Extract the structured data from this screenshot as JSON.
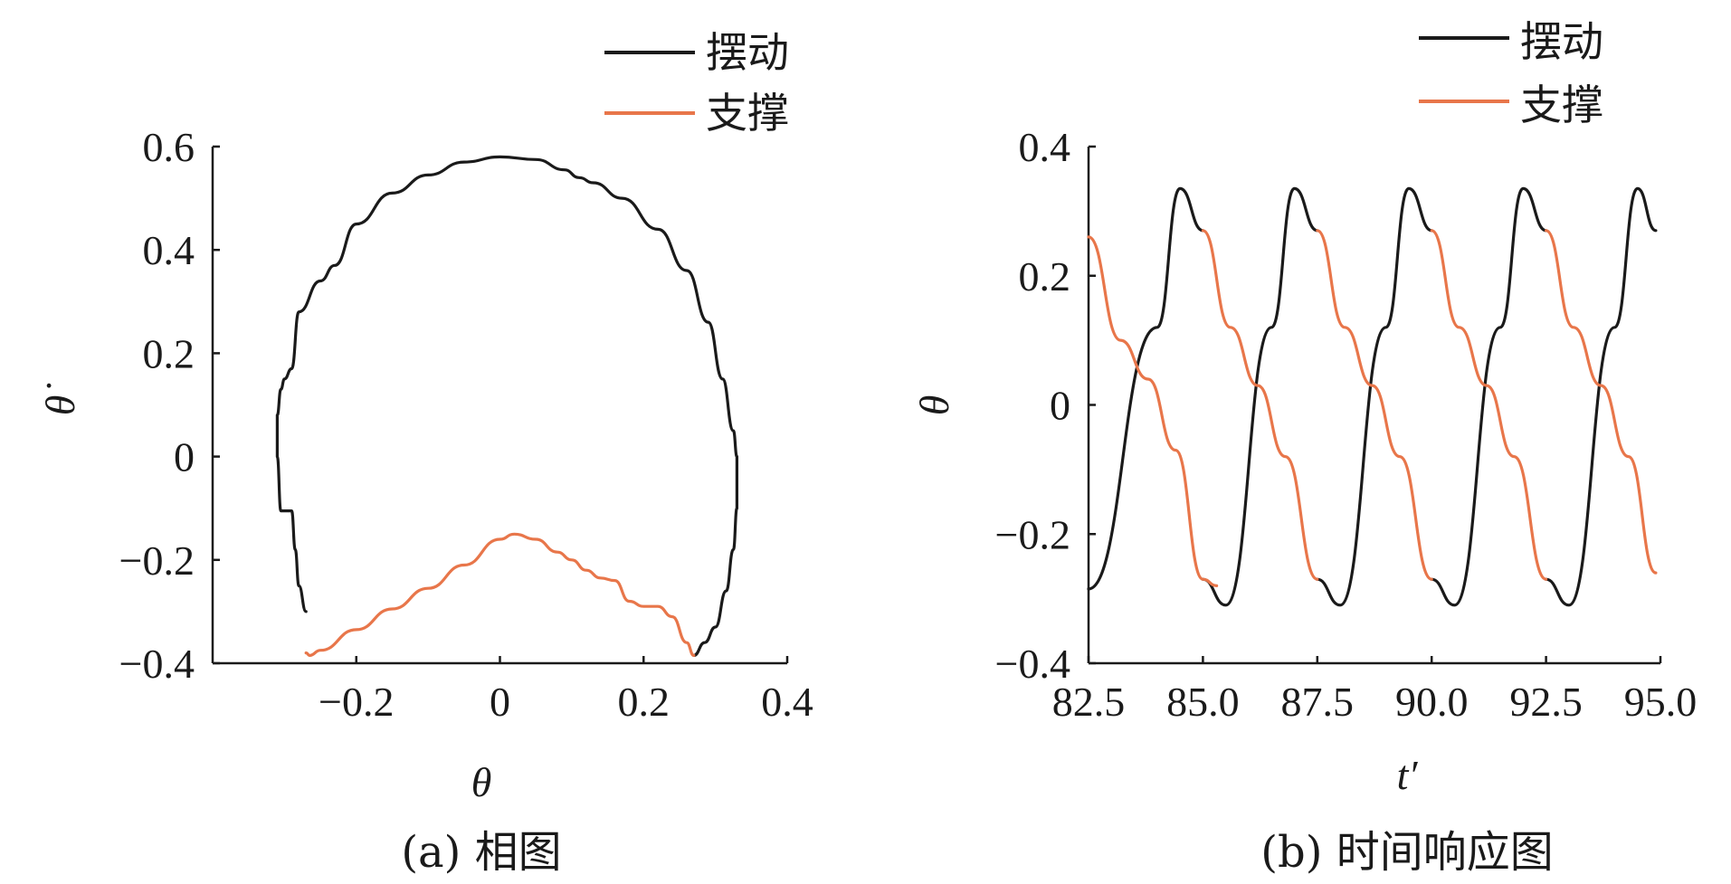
{
  "colors": {
    "swing": "#1a1a1a",
    "stance": "#e8764a",
    "axis": "#1a1a1a"
  },
  "chart_data": [
    {
      "type": "line",
      "caption": "(a) 相图",
      "xlabel": "θ",
      "ylabel": "θ̇",
      "xlim": [
        -0.4,
        0.4
      ],
      "ylim": [
        -0.4,
        0.6
      ],
      "xticks": [
        -0.2,
        0,
        0.2,
        0.4
      ],
      "xtick_labels": [
        "−0.2",
        "0",
        "0.2",
        "0.4"
      ],
      "yticks": [
        -0.4,
        -0.2,
        0,
        0.2,
        0.4,
        0.6
      ],
      "ytick_labels": [
        "−0.4",
        "−0.2",
        "0",
        "0.2",
        "0.4",
        "0.6"
      ],
      "legend_position": "top-right",
      "series": [
        {
          "name": "摆动",
          "color": "#1a1a1a",
          "x": [
            -0.27,
            -0.28,
            -0.285,
            -0.29,
            -0.305,
            -0.31,
            -0.31,
            -0.305,
            -0.3,
            -0.29,
            -0.28,
            -0.25,
            -0.23,
            -0.2,
            -0.15,
            -0.1,
            -0.05,
            0.0,
            0.05,
            0.09,
            0.11,
            0.13,
            0.17,
            0.22,
            0.26,
            0.29,
            0.31,
            0.325,
            0.33,
            0.33,
            0.325,
            0.315,
            0.3,
            0.285,
            0.27
          ],
          "y": [
            -0.3,
            -0.25,
            -0.18,
            -0.105,
            -0.105,
            0.0,
            0.08,
            0.13,
            0.15,
            0.17,
            0.28,
            0.34,
            0.37,
            0.45,
            0.51,
            0.545,
            0.57,
            0.58,
            0.575,
            0.555,
            0.54,
            0.53,
            0.5,
            0.44,
            0.36,
            0.26,
            0.15,
            0.05,
            0.0,
            -0.1,
            -0.18,
            -0.26,
            -0.33,
            -0.36,
            -0.385
          ]
        },
        {
          "name": "支撑",
          "color": "#e8764a",
          "x": [
            -0.27,
            -0.265,
            -0.25,
            -0.2,
            -0.15,
            -0.1,
            -0.05,
            0.0,
            0.02,
            0.05,
            0.08,
            0.1,
            0.12,
            0.14,
            0.16,
            0.18,
            0.2,
            0.22,
            0.24,
            0.26,
            0.27
          ],
          "y": [
            -0.38,
            -0.385,
            -0.375,
            -0.335,
            -0.295,
            -0.255,
            -0.21,
            -0.16,
            -0.15,
            -0.16,
            -0.185,
            -0.2,
            -0.22,
            -0.235,
            -0.24,
            -0.28,
            -0.29,
            -0.29,
            -0.31,
            -0.36,
            -0.385
          ]
        }
      ]
    },
    {
      "type": "line",
      "caption": "(b) 时间响应图",
      "xlabel": "t′",
      "ylabel": "θ",
      "xlim": [
        82.5,
        95.0
      ],
      "ylim": [
        -0.4,
        0.4
      ],
      "xticks": [
        82.5,
        85.0,
        87.5,
        90.0,
        92.5,
        95.0
      ],
      "xtick_labels": [
        "82.5",
        "85.0",
        "87.5",
        "90.0",
        "92.5",
        "95.0"
      ],
      "yticks": [
        -0.4,
        -0.2,
        0,
        0.2,
        0.4
      ],
      "ytick_labels": [
        "−0.4",
        "−0.2",
        "0",
        "0.2",
        "0.4"
      ],
      "legend_position": "top-right",
      "series": [
        {
          "name": "摆动",
          "color": "#1a1a1a",
          "segments": [
            {
              "x": [
                82.5,
                84.0,
                84.5,
                85.0
              ],
              "y": [
                -0.285,
                0.12,
                0.335,
                0.27
              ]
            },
            {
              "x": [
                85.0,
                85.5,
                86.5,
                87.0,
                87.5
              ],
              "y": [
                -0.27,
                -0.31,
                0.12,
                0.335,
                0.27
              ]
            },
            {
              "x": [
                87.5,
                88.0,
                89.0,
                89.5,
                90.0
              ],
              "y": [
                -0.27,
                -0.31,
                0.12,
                0.335,
                0.27
              ]
            },
            {
              "x": [
                90.0,
                90.5,
                91.5,
                92.0,
                92.5
              ],
              "y": [
                -0.27,
                -0.31,
                0.12,
                0.335,
                0.27
              ]
            },
            {
              "x": [
                92.5,
                93.0,
                94.0,
                94.5,
                94.9
              ],
              "y": [
                -0.27,
                -0.31,
                0.12,
                0.335,
                0.27
              ]
            }
          ]
        },
        {
          "name": "支撑",
          "color": "#e8764a",
          "segments": [
            {
              "x": [
                82.5,
                83.2,
                83.8,
                84.4,
                85.0,
                85.3
              ],
              "y": [
                0.26,
                0.1,
                0.04,
                -0.07,
                -0.27,
                -0.28
              ]
            },
            {
              "x": [
                87.5,
                88.1,
                88.7,
                89.3,
                90.0
              ],
              "y": [
                0.27,
                0.12,
                0.03,
                -0.08,
                -0.27
              ]
            },
            {
              "x": [
                90.0,
                90.6,
                91.2,
                91.8,
                92.5
              ],
              "y": [
                0.27,
                0.12,
                0.03,
                -0.08,
                -0.27
              ]
            },
            {
              "x": [
                92.5,
                93.1,
                93.7,
                94.3,
                94.9
              ],
              "y": [
                0.27,
                0.12,
                0.03,
                -0.08,
                -0.26
              ]
            },
            {
              "x": [
                85.0,
                85.6,
                86.2,
                86.8,
                87.5
              ],
              "y": [
                0.27,
                0.12,
                0.03,
                -0.08,
                -0.27
              ]
            }
          ]
        }
      ]
    }
  ]
}
